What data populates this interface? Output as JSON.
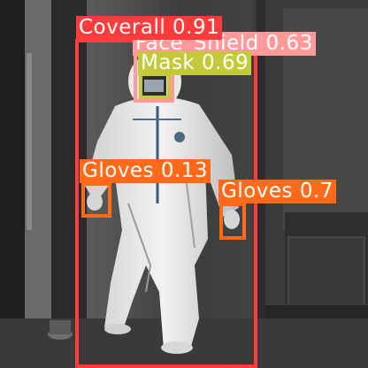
{
  "detections": [
    {
      "label": "Coverall 0.91",
      "class": "Coverall",
      "score": 0.91,
      "color": "#ff3b3b"
    },
    {
      "label": "Face_Shield 0.63",
      "class": "Face_Shield",
      "score": 0.63,
      "color": "#ff9a9a"
    },
    {
      "label": "Mask 0.69",
      "class": "Mask",
      "score": 0.69,
      "color": "#c4c93a"
    },
    {
      "label": "Gloves 0.13",
      "class": "Gloves",
      "score": 0.13,
      "color": "#ff6a1a"
    },
    {
      "label": "Gloves 0.7",
      "class": "Gloves",
      "score": 0.7,
      "color": "#ff6a1a"
    }
  ],
  "colors": {
    "coverall": "#ff3b3b",
    "face_shield": "#ff9a9a",
    "mask": "#c4c93a",
    "gloves": "#ff6a1a"
  }
}
